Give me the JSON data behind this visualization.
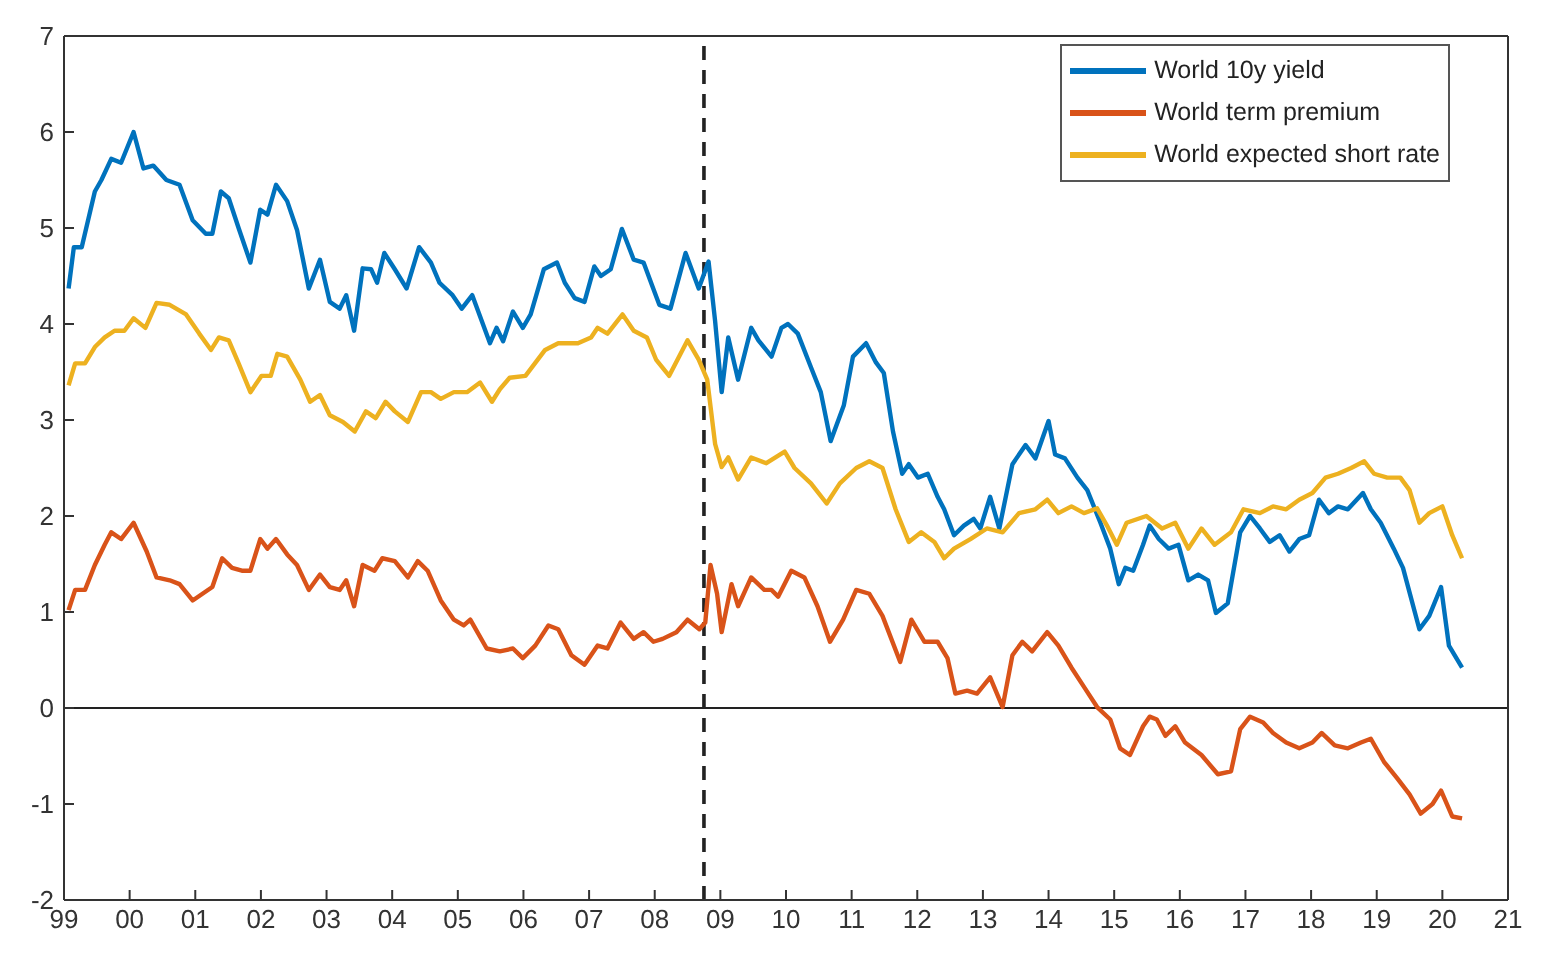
{
  "chart_data": {
    "type": "line",
    "xlim": [
      1999,
      2021
    ],
    "xticks": [
      {
        "value": 1999,
        "label": "99"
      },
      {
        "value": 2000,
        "label": "00"
      },
      {
        "value": 2001,
        "label": "01"
      },
      {
        "value": 2002,
        "label": "02"
      },
      {
        "value": 2003,
        "label": "03"
      },
      {
        "value": 2004,
        "label": "04"
      },
      {
        "value": 2005,
        "label": "05"
      },
      {
        "value": 2006,
        "label": "06"
      },
      {
        "value": 2007,
        "label": "07"
      },
      {
        "value": 2008,
        "label": "08"
      },
      {
        "value": 2009,
        "label": "09"
      },
      {
        "value": 2010,
        "label": "10"
      },
      {
        "value": 2011,
        "label": "11"
      },
      {
        "value": 2012,
        "label": "12"
      },
      {
        "value": 2013,
        "label": "13"
      },
      {
        "value": 2014,
        "label": "14"
      },
      {
        "value": 2015,
        "label": "15"
      },
      {
        "value": 2016,
        "label": "16"
      },
      {
        "value": 2017,
        "label": "17"
      },
      {
        "value": 2018,
        "label": "18"
      },
      {
        "value": 2019,
        "label": "19"
      },
      {
        "value": 2020,
        "label": "20"
      },
      {
        "value": 2021,
        "label": "21"
      }
    ],
    "ylim": [
      -2,
      7
    ],
    "yticks": [
      -2,
      -1,
      0,
      1,
      2,
      3,
      4,
      5,
      6,
      7
    ],
    "legend": "top right",
    "marker": "none",
    "line_style": "solid",
    "ref_lines": [
      {
        "axis": "x",
        "value": 2008.75,
        "color": "#222222",
        "line_style": "dashed"
      },
      {
        "axis": "y",
        "value": 0,
        "color": "#222222",
        "line_style": "solid"
      }
    ],
    "series": [
      {
        "name": "World 10y yield",
        "color": "#0072bd",
        "x": [
          1999.07,
          1999.15,
          1999.27,
          1999.47,
          1999.57,
          1999.72,
          1999.87,
          2000.06,
          2000.21,
          2000.36,
          2000.56,
          2000.76,
          2000.96,
          2001.16,
          2001.26,
          2001.39,
          2001.51,
          2001.66,
          2001.84,
          2001.99,
          2002.1,
          2002.23,
          2002.4,
          2002.55,
          2002.73,
          2002.9,
          2003.05,
          2003.2,
          2003.3,
          2003.42,
          2003.55,
          2003.68,
          2003.77,
          2003.88,
          2004.04,
          2004.22,
          2004.41,
          2004.59,
          2004.72,
          2004.92,
          2005.06,
          2005.22,
          2005.49,
          2005.59,
          2005.69,
          2005.84,
          2005.99,
          2006.11,
          2006.31,
          2006.51,
          2006.63,
          2006.78,
          2006.93,
          2007.08,
          2007.18,
          2007.33,
          2007.5,
          2007.68,
          2007.83,
          2007.96,
          2008.07,
          2008.24,
          2008.47,
          2008.67,
          2008.82,
          2008.92,
          2009.02,
          2009.12,
          2009.27,
          2009.47,
          2009.58,
          2009.78,
          2009.93,
          2010.03,
          2010.18,
          2010.38,
          2010.53,
          2010.68,
          2010.88,
          2011.02,
          2011.22,
          2011.37,
          2011.49,
          2011.63,
          2011.77,
          2011.87,
          2012.01,
          2012.16,
          2012.31,
          2012.41,
          2012.56,
          2012.71,
          2012.86,
          2012.96,
          2013.11,
          2013.25,
          2013.45,
          2013.65,
          2013.8,
          2014.0,
          2014.1,
          2014.25,
          2014.44,
          2014.59,
          2014.79,
          2014.94,
          2015.07,
          2015.17,
          2015.29,
          2015.44,
          2015.54,
          2015.68,
          2015.83,
          2015.98,
          2016.13,
          2016.28,
          2016.43,
          2016.55,
          2016.73,
          2016.92,
          2017.07,
          2017.22,
          2017.37,
          2017.52,
          2017.67,
          2017.82,
          2017.97,
          2018.12,
          2018.27,
          2018.41,
          2018.56,
          2018.79,
          2018.91,
          2019.06,
          2019.26,
          2019.4,
          2019.65,
          2019.8,
          2019.98,
          2020.1,
          2020.3
        ],
        "values": [
          4.37,
          4.8,
          4.8,
          5.38,
          5.5,
          5.72,
          5.68,
          6.0,
          5.62,
          5.65,
          5.5,
          5.45,
          5.08,
          4.94,
          4.94,
          5.38,
          5.31,
          5.0,
          4.64,
          5.19,
          5.14,
          5.45,
          5.28,
          4.98,
          4.37,
          4.67,
          4.23,
          4.16,
          4.3,
          3.93,
          4.58,
          4.57,
          4.43,
          4.74,
          4.57,
          4.37,
          4.8,
          4.64,
          4.43,
          4.3,
          4.16,
          4.3,
          3.8,
          3.96,
          3.82,
          4.13,
          3.96,
          4.1,
          4.57,
          4.64,
          4.43,
          4.27,
          4.23,
          4.6,
          4.5,
          4.57,
          4.99,
          4.67,
          4.64,
          4.4,
          4.2,
          4.16,
          4.74,
          4.37,
          4.65,
          4.03,
          3.29,
          3.86,
          3.42,
          3.96,
          3.83,
          3.66,
          3.96,
          4.0,
          3.9,
          3.55,
          3.29,
          2.78,
          3.15,
          3.66,
          3.8,
          3.6,
          3.49,
          2.88,
          2.44,
          2.54,
          2.4,
          2.44,
          2.2,
          2.07,
          1.8,
          1.9,
          1.97,
          1.87,
          2.2,
          1.87,
          2.54,
          2.74,
          2.6,
          2.99,
          2.64,
          2.6,
          2.4,
          2.27,
          1.93,
          1.66,
          1.29,
          1.46,
          1.43,
          1.7,
          1.9,
          1.76,
          1.66,
          1.7,
          1.33,
          1.39,
          1.33,
          0.99,
          1.09,
          1.83,
          2.0,
          1.87,
          1.73,
          1.8,
          1.63,
          1.76,
          1.8,
          2.17,
          2.03,
          2.1,
          2.07,
          2.24,
          2.07,
          1.93,
          1.66,
          1.46,
          0.82,
          0.96,
          1.26,
          0.65,
          0.42
        ]
      },
      {
        "name": "World term premium",
        "color": "#d95319",
        "x": [
          1999.07,
          1999.17,
          1999.32,
          1999.47,
          1999.62,
          1999.72,
          1999.87,
          2000.06,
          2000.26,
          2000.41,
          2000.61,
          2000.76,
          2000.96,
          2001.11,
          2001.26,
          2001.41,
          2001.56,
          2001.71,
          2001.84,
          2001.99,
          2002.1,
          2002.23,
          2002.4,
          2002.55,
          2002.73,
          2002.9,
          2003.05,
          2003.2,
          2003.3,
          2003.42,
          2003.55,
          2003.73,
          2003.85,
          2004.04,
          2004.24,
          2004.39,
          2004.54,
          2004.74,
          2004.94,
          2005.09,
          2005.19,
          2005.44,
          2005.64,
          2005.84,
          2005.99,
          2006.18,
          2006.38,
          2006.53,
          2006.73,
          2006.93,
          2007.13,
          2007.28,
          2007.48,
          2007.68,
          2007.83,
          2007.98,
          2008.12,
          2008.33,
          2008.5,
          2008.68,
          2008.77,
          2008.85,
          2008.95,
          2009.02,
          2009.17,
          2009.27,
          2009.47,
          2009.67,
          2009.78,
          2009.88,
          2010.08,
          2010.28,
          2010.48,
          2010.67,
          2010.87,
          2011.07,
          2011.27,
          2011.47,
          2011.74,
          2011.91,
          2012.11,
          2012.31,
          2012.46,
          2012.58,
          2012.76,
          2012.91,
          2013.11,
          2013.3,
          2013.45,
          2013.6,
          2013.75,
          2013.98,
          2014.15,
          2014.35,
          2014.54,
          2014.74,
          2014.94,
          2015.09,
          2015.24,
          2015.44,
          2015.54,
          2015.65,
          2015.78,
          2015.93,
          2016.08,
          2016.33,
          2016.58,
          2016.78,
          2016.92,
          2017.07,
          2017.27,
          2017.42,
          2017.62,
          2017.82,
          2018.02,
          2018.16,
          2018.36,
          2018.56,
          2018.76,
          2018.91,
          2019.11,
          2019.31,
          2019.5,
          2019.67,
          2019.85,
          2019.98,
          2020.15,
          2020.3
        ],
        "values": [
          1.02,
          1.23,
          1.23,
          1.49,
          1.7,
          1.83,
          1.76,
          1.93,
          1.63,
          1.36,
          1.33,
          1.29,
          1.12,
          1.19,
          1.26,
          1.56,
          1.46,
          1.43,
          1.43,
          1.76,
          1.66,
          1.76,
          1.6,
          1.49,
          1.23,
          1.39,
          1.26,
          1.23,
          1.33,
          1.06,
          1.49,
          1.43,
          1.56,
          1.53,
          1.36,
          1.53,
          1.43,
          1.12,
          0.92,
          0.86,
          0.92,
          0.62,
          0.59,
          0.62,
          0.52,
          0.65,
          0.86,
          0.82,
          0.55,
          0.45,
          0.65,
          0.62,
          0.89,
          0.72,
          0.79,
          0.69,
          0.72,
          0.79,
          0.92,
          0.82,
          0.89,
          1.49,
          1.19,
          0.79,
          1.29,
          1.06,
          1.36,
          1.23,
          1.23,
          1.16,
          1.43,
          1.36,
          1.06,
          0.69,
          0.92,
          1.23,
          1.19,
          0.96,
          0.48,
          0.92,
          0.69,
          0.69,
          0.52,
          0.15,
          0.18,
          0.15,
          0.32,
          0.01,
          0.55,
          0.69,
          0.59,
          0.79,
          0.65,
          0.42,
          0.22,
          0.01,
          -0.12,
          -0.42,
          -0.49,
          -0.19,
          -0.09,
          -0.12,
          -0.29,
          -0.19,
          -0.36,
          -0.49,
          -0.69,
          -0.66,
          -0.22,
          -0.09,
          -0.15,
          -0.26,
          -0.36,
          -0.42,
          -0.36,
          -0.26,
          -0.39,
          -0.42,
          -0.36,
          -0.32,
          -0.56,
          -0.73,
          -0.9,
          -1.1,
          -1.0,
          -0.86,
          -1.13,
          -1.15
        ]
      },
      {
        "name": "World expected short rate",
        "color": "#edb120",
        "x": [
          1999.07,
          1999.17,
          1999.32,
          1999.47,
          1999.62,
          1999.77,
          1999.92,
          2000.06,
          2000.24,
          2000.41,
          2000.61,
          2000.86,
          2001.06,
          2001.24,
          2001.36,
          2001.51,
          2001.66,
          2001.84,
          2002.01,
          2002.15,
          2002.25,
          2002.4,
          2002.6,
          2002.75,
          2002.9,
          2003.05,
          2003.25,
          2003.43,
          2003.6,
          2003.75,
          2003.9,
          2004.04,
          2004.24,
          2004.44,
          2004.59,
          2004.74,
          2004.94,
          2005.14,
          2005.34,
          2005.52,
          2005.64,
          2005.79,
          2006.03,
          2006.33,
          2006.53,
          2006.83,
          2007.03,
          2007.13,
          2007.28,
          2007.51,
          2007.68,
          2007.88,
          2008.02,
          2008.22,
          2008.37,
          2008.5,
          2008.67,
          2008.8,
          2008.92,
          2009.02,
          2009.12,
          2009.27,
          2009.47,
          2009.7,
          2009.98,
          2010.13,
          2010.38,
          2010.62,
          2010.82,
          2011.07,
          2011.27,
          2011.47,
          2011.67,
          2011.87,
          2012.06,
          2012.26,
          2012.41,
          2012.56,
          2012.81,
          2013.06,
          2013.3,
          2013.55,
          2013.8,
          2013.98,
          2014.15,
          2014.35,
          2014.54,
          2014.74,
          2014.89,
          2015.04,
          2015.19,
          2015.49,
          2015.73,
          2015.93,
          2016.13,
          2016.33,
          2016.53,
          2016.78,
          2016.97,
          2017.22,
          2017.42,
          2017.62,
          2017.82,
          2018.02,
          2018.22,
          2018.41,
          2018.61,
          2018.81,
          2018.96,
          2019.16,
          2019.36,
          2019.5,
          2019.65,
          2019.8,
          2020.0,
          2020.15,
          2020.3
        ],
        "values": [
          3.36,
          3.59,
          3.59,
          3.76,
          3.86,
          3.93,
          3.93,
          4.06,
          3.96,
          4.22,
          4.2,
          4.1,
          3.9,
          3.73,
          3.86,
          3.83,
          3.59,
          3.29,
          3.46,
          3.46,
          3.69,
          3.66,
          3.42,
          3.19,
          3.26,
          3.05,
          2.98,
          2.88,
          3.09,
          3.02,
          3.19,
          3.09,
          2.98,
          3.29,
          3.29,
          3.22,
          3.29,
          3.29,
          3.39,
          3.19,
          3.32,
          3.44,
          3.46,
          3.73,
          3.8,
          3.8,
          3.86,
          3.96,
          3.9,
          4.1,
          3.93,
          3.86,
          3.63,
          3.46,
          3.66,
          3.83,
          3.63,
          3.42,
          2.75,
          2.51,
          2.61,
          2.38,
          2.61,
          2.55,
          2.67,
          2.5,
          2.34,
          2.13,
          2.34,
          2.5,
          2.57,
          2.5,
          2.07,
          1.73,
          1.83,
          1.73,
          1.56,
          1.66,
          1.76,
          1.87,
          1.83,
          2.03,
          2.07,
          2.17,
          2.03,
          2.1,
          2.03,
          2.08,
          1.9,
          1.7,
          1.93,
          2.0,
          1.87,
          1.93,
          1.66,
          1.87,
          1.7,
          1.83,
          2.07,
          2.03,
          2.1,
          2.07,
          2.17,
          2.24,
          2.4,
          2.44,
          2.5,
          2.57,
          2.44,
          2.4,
          2.4,
          2.27,
          1.93,
          2.03,
          2.1,
          1.8,
          1.56
        ]
      }
    ]
  }
}
